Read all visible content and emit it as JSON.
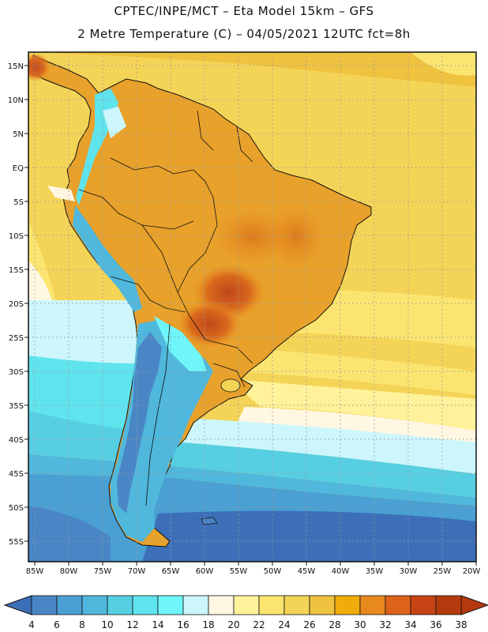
{
  "header": {
    "title_line1": "CPTEC/INPE/MCT –  Eta Model 15km – GFS",
    "title_line2": "2 Metre Temperature (C) – 04/05/2021 12UTC fct=8h"
  },
  "map": {
    "lon_labels": [
      "85W",
      "80W",
      "75W",
      "70W",
      "65W",
      "60W",
      "55W",
      "50W",
      "45W",
      "40W",
      "35W",
      "30W",
      "25W",
      "20W"
    ],
    "lat_labels": [
      "15N",
      "10N",
      "5N",
      "EQ",
      "5S",
      "10S",
      "15S",
      "20S",
      "25S",
      "30S",
      "35S",
      "40S",
      "45S",
      "50S",
      "55S"
    ]
  },
  "colorbar": {
    "labels": [
      "4",
      "6",
      "8",
      "10",
      "12",
      "14",
      "16",
      "18",
      "20",
      "22",
      "24",
      "26",
      "28",
      "30",
      "32",
      "34",
      "36",
      "38"
    ],
    "colors": [
      "#3d6fb8",
      "#4a86c6",
      "#4aa0d3",
      "#4fb8dc",
      "#57cfe3",
      "#5fe4ee",
      "#6ff6fb",
      "#ccf6fc",
      "#fff7e2",
      "#fff29a",
      "#fbe570",
      "#f4d457",
      "#efc23f",
      "#efac0a",
      "#e8891e",
      "#dd621a",
      "#c64314",
      "#b43a0e"
    ]
  }
}
